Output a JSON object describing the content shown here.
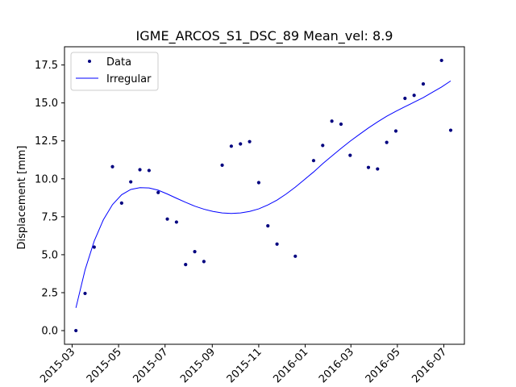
{
  "chart_data": {
    "type": "scatter",
    "title": "IGME_ARCOS_S1_DSC_89     Mean_vel: 8.9",
    "xlabel": "",
    "ylabel": "Displacement [mm]",
    "xlim": [
      "2015-02-19",
      "2016-07-28"
    ],
    "ylim": [
      -0.9,
      18.7
    ],
    "x_ticks": [
      "2015-03",
      "2015-05",
      "2015-07",
      "2015-09",
      "2015-11",
      "2016-01",
      "2016-03",
      "2016-05",
      "2016-07"
    ],
    "y_ticks": [
      "0.0",
      "2.5",
      "5.0",
      "7.5",
      "10.0",
      "12.5",
      "15.0",
      "17.5"
    ],
    "grid": false,
    "legend": {
      "position": "top-left",
      "entries": [
        "Data",
        "Irregular"
      ]
    },
    "series": [
      {
        "name": "Data",
        "kind": "points",
        "color": "#00007f",
        "x": [
          "2015-03-06",
          "2015-03-18",
          "2015-03-30",
          "2015-04-23",
          "2015-05-05",
          "2015-05-17",
          "2015-05-29",
          "2015-06-10",
          "2015-06-22",
          "2015-07-04",
          "2015-07-16",
          "2015-07-28",
          "2015-08-09",
          "2015-08-21",
          "2015-09-14",
          "2015-09-26",
          "2015-10-08",
          "2015-10-20",
          "2015-11-01",
          "2015-11-13",
          "2015-11-25",
          "2015-12-19",
          "2016-01-12",
          "2016-01-24",
          "2016-02-05",
          "2016-02-17",
          "2016-02-29",
          "2016-03-24",
          "2016-04-05",
          "2016-04-17",
          "2016-04-29",
          "2016-05-11",
          "2016-05-23",
          "2016-06-04",
          "2016-06-28",
          "2016-07-10"
        ],
        "y": [
          0.0,
          2.45,
          5.5,
          10.8,
          8.4,
          9.8,
          10.6,
          10.55,
          9.1,
          7.35,
          7.15,
          4.35,
          5.2,
          4.55,
          10.9,
          12.15,
          12.3,
          12.45,
          9.75,
          6.9,
          5.7,
          4.9,
          11.2,
          12.2,
          13.8,
          13.6,
          11.55,
          10.75,
          10.65,
          12.4,
          13.15,
          15.3,
          15.5,
          16.25,
          17.8,
          13.2
        ]
      },
      {
        "name": "Irregular",
        "kind": "line",
        "color": "#0000ff",
        "x": [
          "2015-03-06",
          "2015-03-18",
          "2015-03-30",
          "2015-04-11",
          "2015-04-23",
          "2015-05-05",
          "2015-05-17",
          "2015-05-29",
          "2015-06-10",
          "2015-06-22",
          "2015-07-04",
          "2015-07-16",
          "2015-07-28",
          "2015-08-09",
          "2015-08-21",
          "2015-09-02",
          "2015-09-14",
          "2015-09-26",
          "2015-10-08",
          "2015-10-20",
          "2015-11-01",
          "2015-11-13",
          "2015-11-25",
          "2015-12-07",
          "2015-12-19",
          "2015-12-31",
          "2016-01-12",
          "2016-01-24",
          "2016-02-05",
          "2016-02-17",
          "2016-02-29",
          "2016-03-12",
          "2016-03-24",
          "2016-04-05",
          "2016-04-17",
          "2016-04-29",
          "2016-05-11",
          "2016-05-23",
          "2016-06-04",
          "2016-06-16",
          "2016-06-28",
          "2016-07-10"
        ],
        "y": [
          1.5,
          4.0,
          5.9,
          7.3,
          8.3,
          8.95,
          9.3,
          9.42,
          9.4,
          9.25,
          9.0,
          8.72,
          8.45,
          8.2,
          8.0,
          7.85,
          7.75,
          7.72,
          7.75,
          7.85,
          8.02,
          8.28,
          8.6,
          9.0,
          9.45,
          9.95,
          10.45,
          11.0,
          11.5,
          12.0,
          12.48,
          12.92,
          13.35,
          13.75,
          14.12,
          14.45,
          14.75,
          15.05,
          15.35,
          15.7,
          16.05,
          16.45
        ]
      }
    ]
  }
}
